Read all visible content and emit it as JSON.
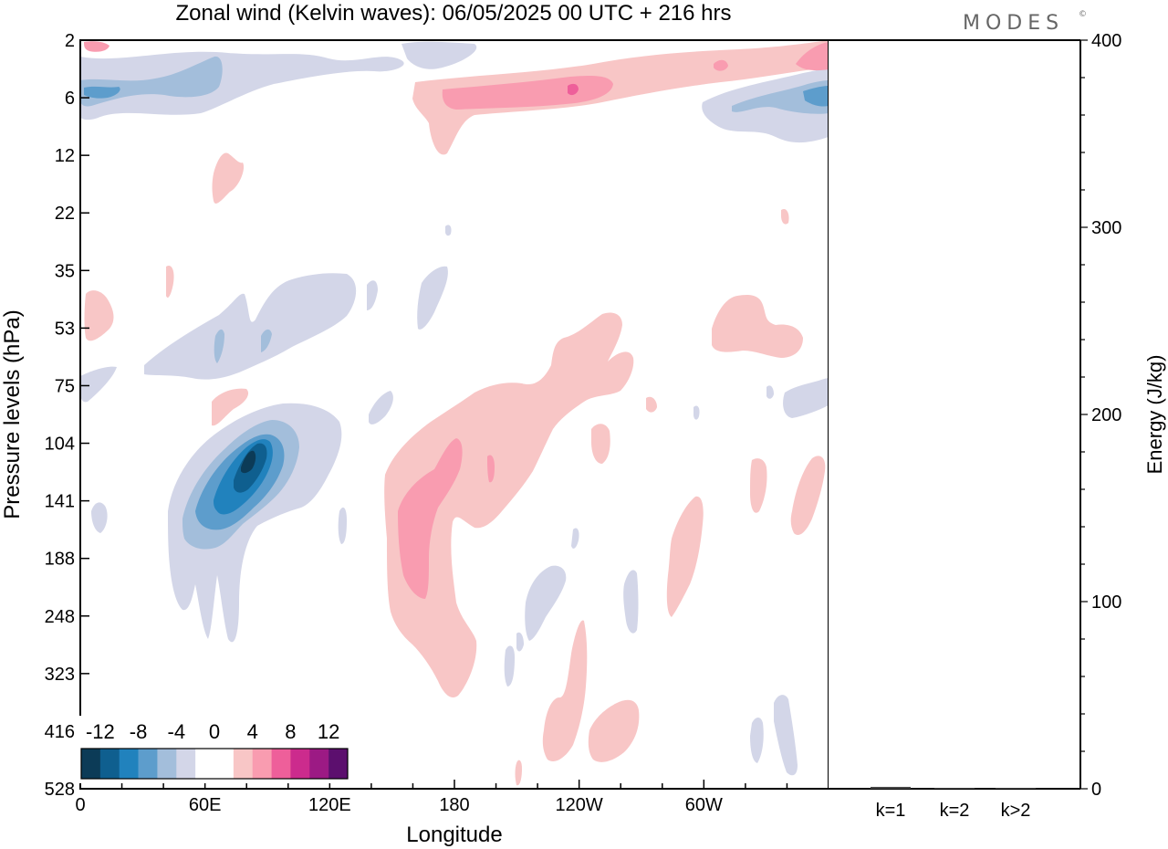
{
  "chart_data": {
    "type": "heatmap",
    "title": "Zonal wind (Kelvin waves):  06/05/2025  00 UTC  + 216 hrs",
    "brand": "MODES",
    "brand_mark": "©",
    "xlabel": "Longitude",
    "ylabel": "Pressure levels (hPa)",
    "x_ticks": [
      "0",
      "60E",
      "120E",
      "180",
      "120W",
      "60W"
    ],
    "y_ticks": [
      "2",
      "6",
      "12",
      "22",
      "35",
      "53",
      "75",
      "104",
      "141",
      "188",
      "248",
      "323",
      "416",
      "528"
    ],
    "colorbar": {
      "labels": [
        "-12",
        "-8",
        "-4",
        "0",
        "4",
        "8",
        "12"
      ],
      "colors": [
        "#0c3b57",
        "#0f5f8f",
        "#2182bd",
        "#5d9dcc",
        "#a3bedb",
        "#d3d6e8",
        "#ffffff",
        "#ffffff",
        "#f8c6c6",
        "#f99cb0",
        "#ee5f9a",
        "#cc2b8d",
        "#9c1a84",
        "#5c0f6e"
      ]
    },
    "energy_panel": {
      "ylabel": "Energy (J/kg)",
      "ylim": [
        0,
        400
      ],
      "y_ticks": [
        "0",
        "100",
        "200",
        "300",
        "400"
      ],
      "categories": [
        "k=1",
        "k=2",
        "k>2"
      ],
      "values": [
        1,
        0.5,
        0.5
      ]
    }
  }
}
